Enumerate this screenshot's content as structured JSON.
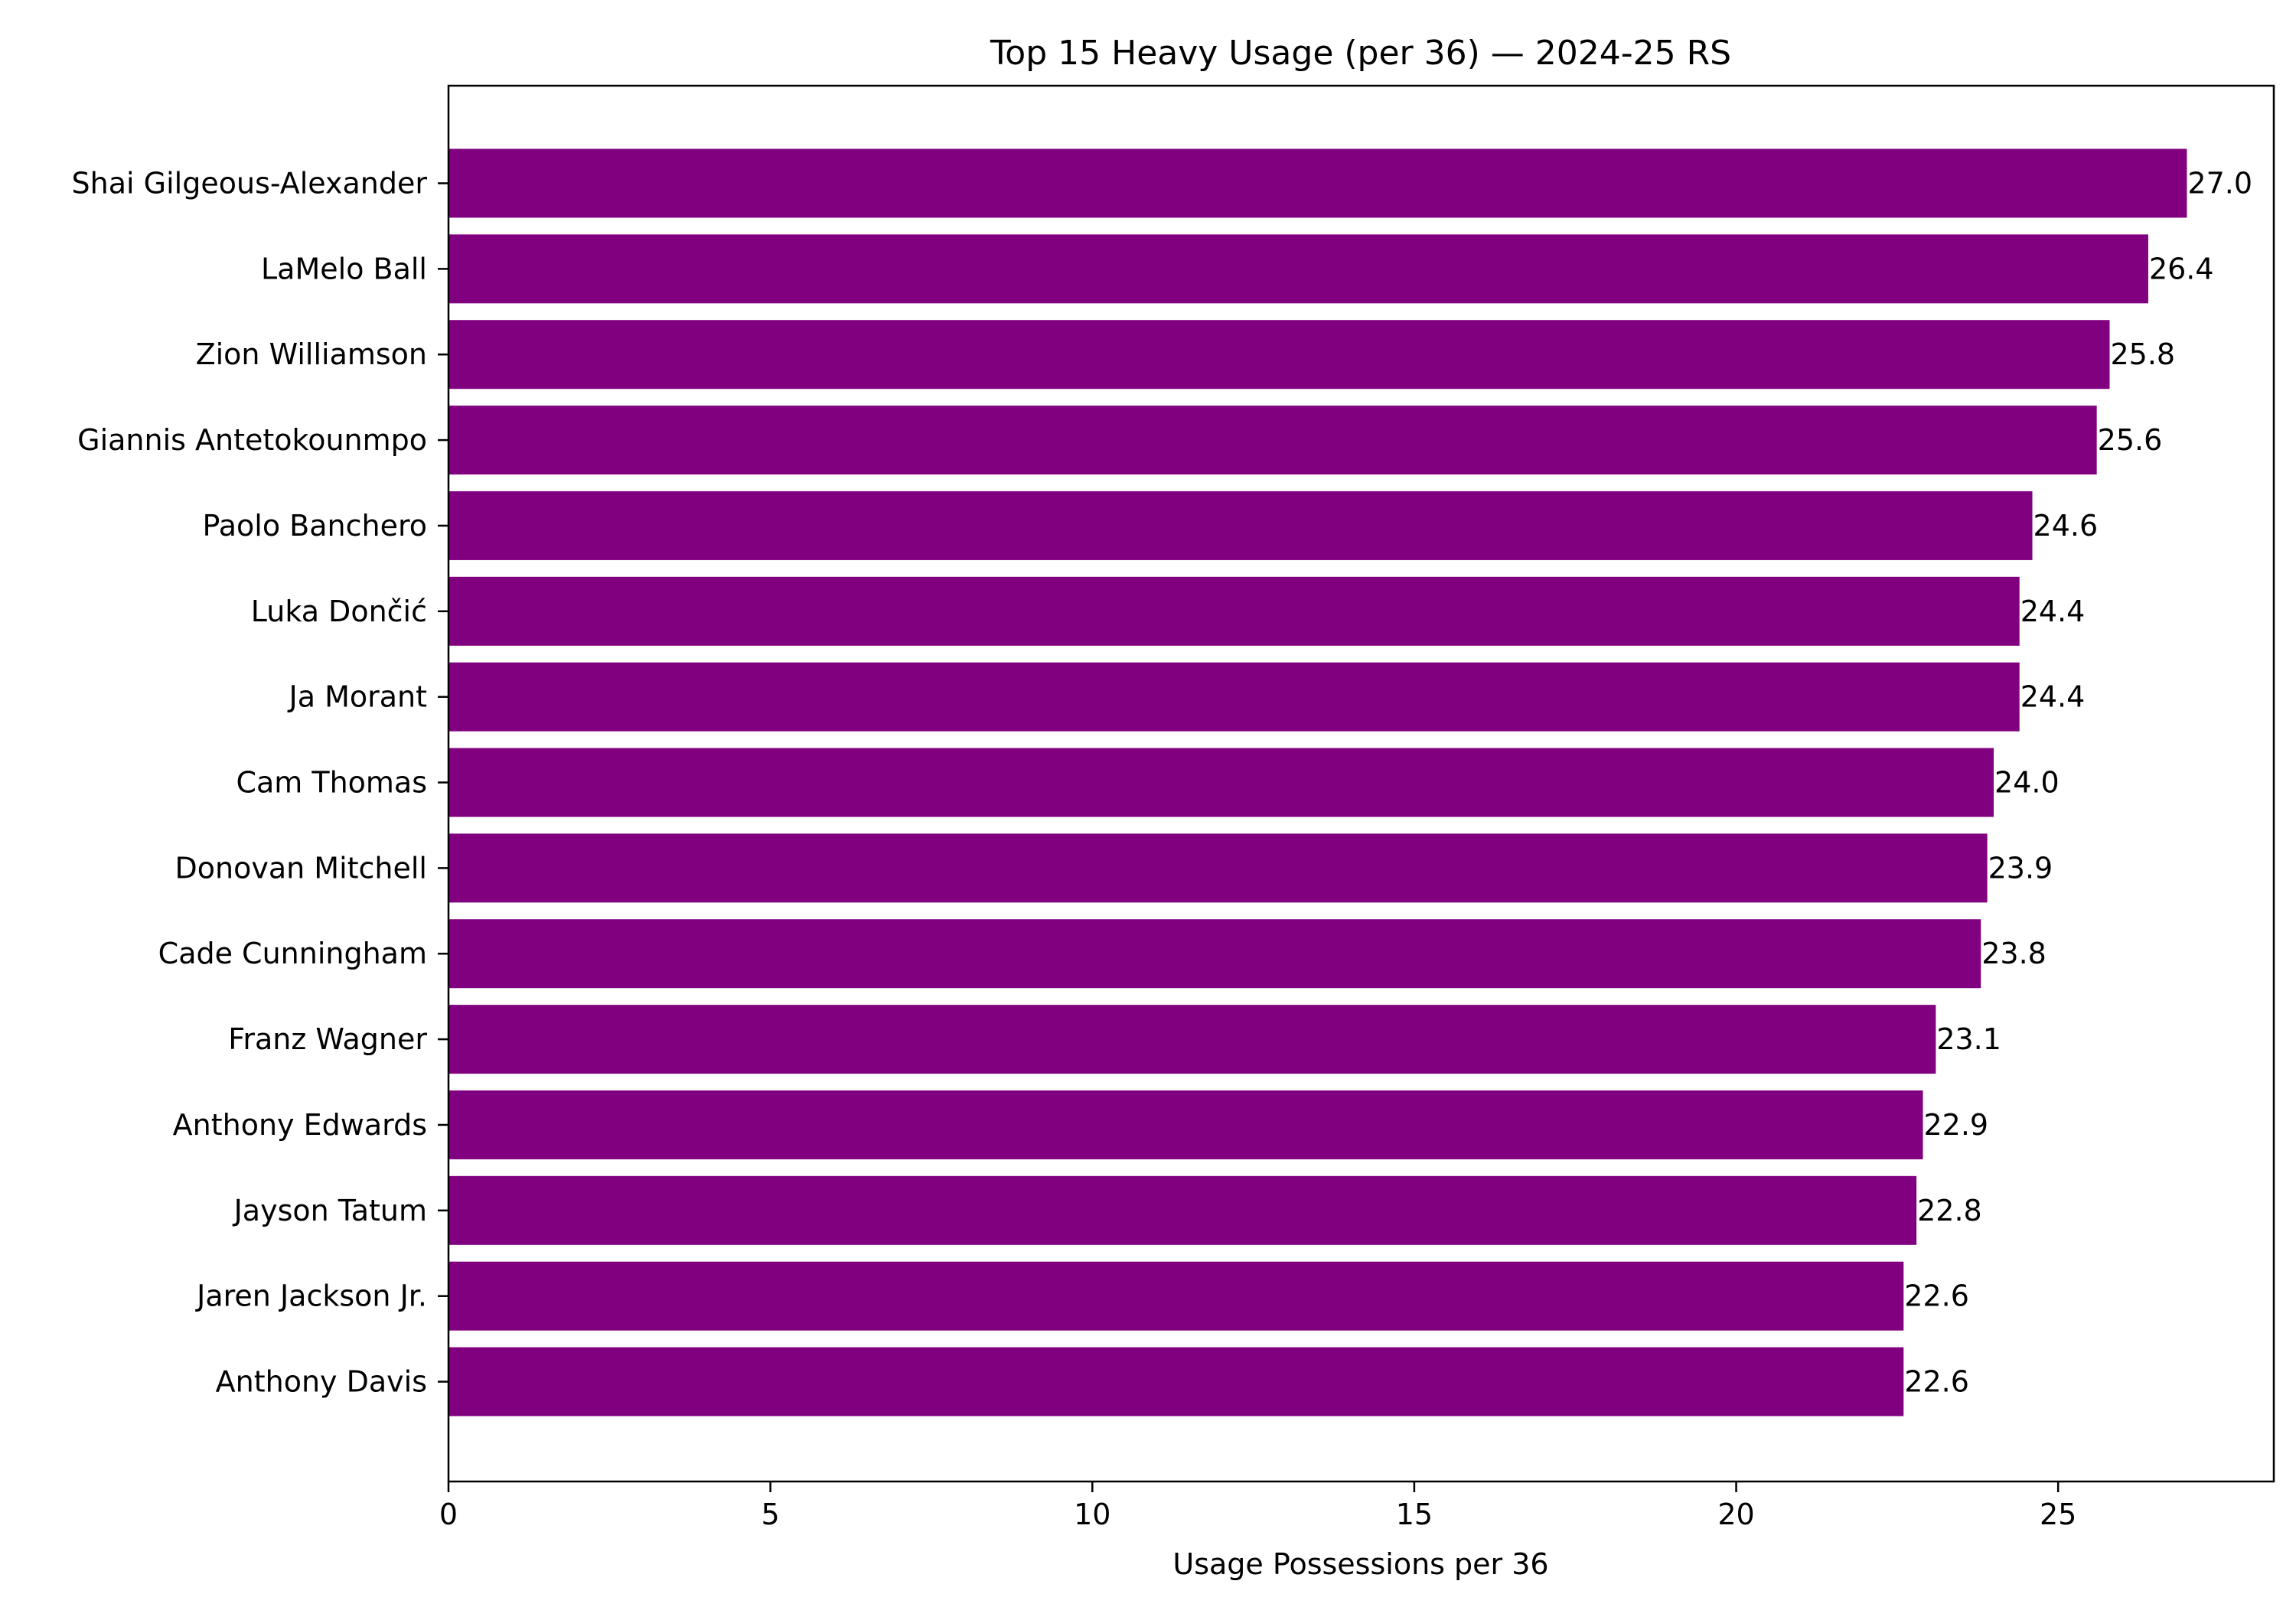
{
  "chart_data": {
    "type": "bar",
    "orientation": "horizontal",
    "title": "Top 15 Heavy Usage (per 36) — 2024-25 RS",
    "xlabel": "Usage Possessions per 36",
    "ylabel": "",
    "xlim": [
      0,
      28.35
    ],
    "xticks": [
      0,
      5,
      10,
      15,
      20,
      25
    ],
    "grid": false,
    "bar_color": "#800080",
    "categories": [
      "Shai Gilgeous-Alexander",
      "LaMelo Ball",
      "Zion Williamson",
      "Giannis Antetokounmpo",
      "Paolo Banchero",
      "Luka Dončić",
      "Ja Morant",
      "Cam Thomas",
      "Donovan Mitchell",
      "Cade Cunningham",
      "Franz Wagner",
      "Anthony Edwards",
      "Jayson Tatum",
      "Jaren Jackson Jr.",
      "Anthony Davis"
    ],
    "values": [
      27.0,
      26.4,
      25.8,
      25.6,
      24.6,
      24.4,
      24.4,
      24.0,
      23.9,
      23.8,
      23.1,
      22.9,
      22.8,
      22.6,
      22.6
    ],
    "value_labels": [
      "27.0",
      "26.4",
      "25.8",
      "25.6",
      "24.6",
      "24.4",
      "24.4",
      "24.0",
      "23.9",
      "23.8",
      "23.1",
      "22.9",
      "22.8",
      "22.6",
      "22.6"
    ]
  }
}
